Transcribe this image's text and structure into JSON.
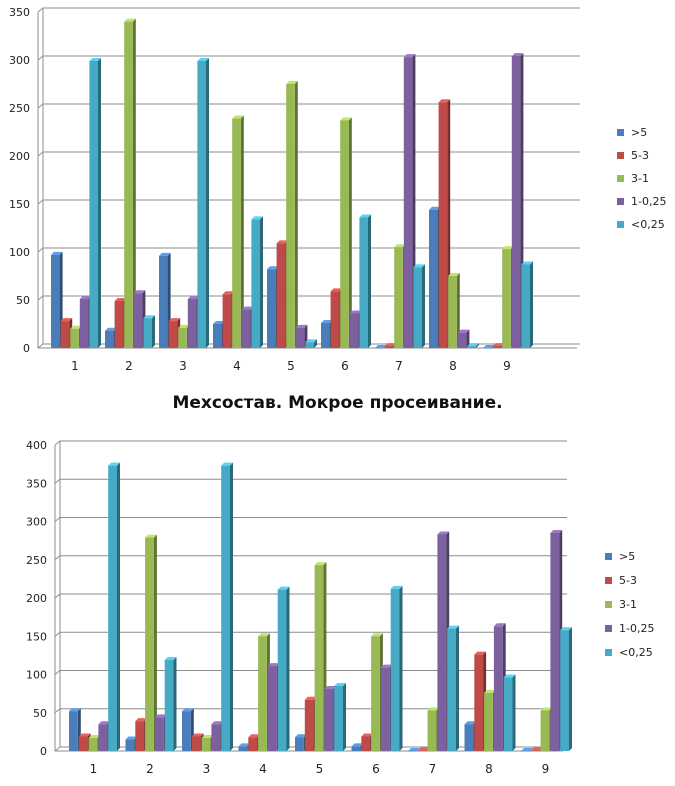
{
  "chart_data": [
    {
      "type": "bar",
      "title": "",
      "xlabel": "",
      "ylabel": "",
      "ylim": [
        0,
        350
      ],
      "yticks": [
        0,
        50,
        100,
        150,
        200,
        250,
        300,
        350
      ],
      "grid": true,
      "legend_position": "right",
      "categories": [
        "1",
        "2",
        "3",
        "4",
        "5",
        "6",
        "7",
        "8",
        "9"
      ],
      "series": [
        {
          "name": ">5",
          "color": "#4A7EBB",
          "values": [
            97,
            18,
            96,
            25,
            82,
            26,
            0,
            144,
            0
          ]
        },
        {
          "name": "5-3",
          "color": "#BE4B48",
          "values": [
            28,
            49,
            28,
            56,
            109,
            59,
            2,
            256,
            2
          ]
        },
        {
          "name": "3-1",
          "color": "#98B954",
          "values": [
            20,
            340,
            21,
            239,
            275,
            237,
            105,
            75,
            103
          ]
        },
        {
          "name": "1-0,25",
          "color": "#7D60A0",
          "values": [
            51,
            57,
            51,
            40,
            21,
            36,
            303,
            16,
            304
          ]
        },
        {
          "name": "<0,25",
          "color": "#46AAC5",
          "values": [
            299,
            31,
            299,
            134,
            6,
            136,
            84,
            2,
            87
          ]
        }
      ]
    },
    {
      "type": "bar",
      "title": "Мехсостав. Мокрое просеивание.",
      "xlabel": "",
      "ylabel": "",
      "ylim": [
        0,
        400
      ],
      "yticks": [
        0,
        50,
        100,
        150,
        200,
        250,
        300,
        350,
        400
      ],
      "grid": true,
      "legend_position": "right",
      "categories": [
        "1",
        "2",
        "3",
        "4",
        "5",
        "6",
        "7",
        "8",
        "9"
      ],
      "series": [
        {
          "name": ">5",
          "color": "#4A7EBB",
          "values": [
            52,
            15,
            52,
            6,
            18,
            6,
            0,
            35,
            0
          ]
        },
        {
          "name": "5-3",
          "color": "#BE4B48",
          "values": [
            19,
            39,
            19,
            18,
            67,
            19,
            1,
            126,
            1
          ]
        },
        {
          "name": "3-1",
          "color": "#98B954",
          "values": [
            17,
            279,
            17,
            150,
            243,
            150,
            53,
            76,
            53
          ]
        },
        {
          "name": "1-0,25",
          "color": "#7D60A0",
          "values": [
            35,
            44,
            35,
            111,
            81,
            109,
            283,
            163,
            285
          ]
        },
        {
          "name": "<0,25",
          "color": "#46AAC5",
          "values": [
            373,
            119,
            373,
            211,
            85,
            212,
            160,
            96,
            158
          ]
        }
      ]
    }
  ]
}
